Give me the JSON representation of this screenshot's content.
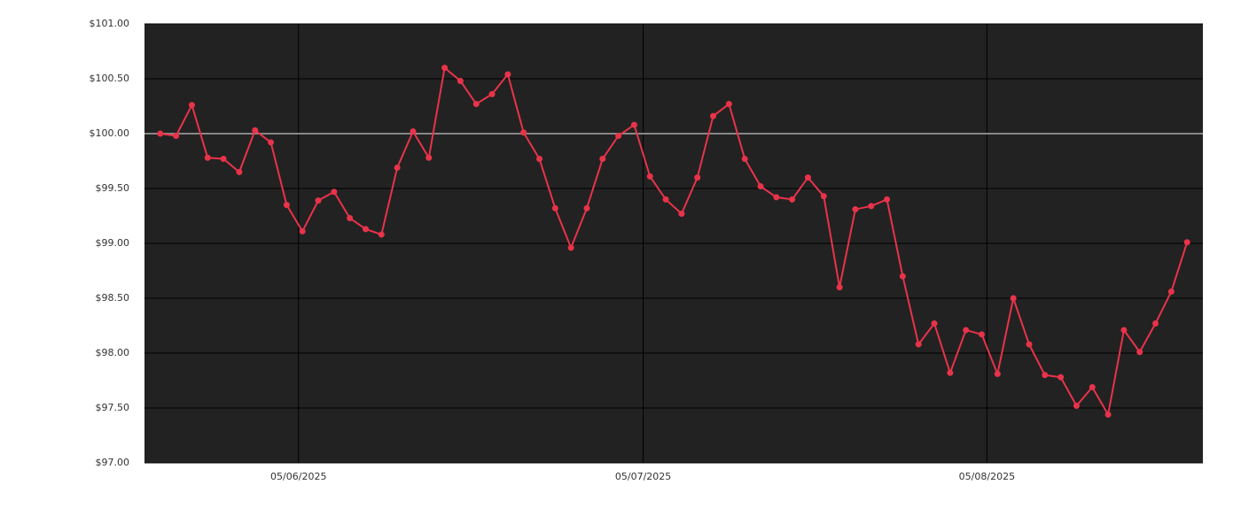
{
  "chart_data": {
    "type": "line",
    "x": [
      0,
      1,
      2,
      3,
      4,
      5,
      6,
      7,
      8,
      9,
      10,
      11,
      12,
      13,
      14,
      15,
      16,
      17,
      18,
      19,
      20,
      21,
      22,
      23,
      24,
      25,
      26,
      27,
      28,
      29,
      30,
      31,
      32,
      33,
      34,
      35,
      36,
      37,
      38,
      39,
      40,
      41,
      42,
      43,
      44,
      45,
      46,
      47,
      48,
      49,
      50,
      51,
      52,
      53,
      54,
      55,
      56,
      57,
      58,
      59,
      60,
      61,
      62,
      63,
      64,
      65
    ],
    "series": [
      {
        "color": "#e8334a",
        "values": [
          100.0,
          99.98,
          100.26,
          99.78,
          99.77,
          99.65,
          100.03,
          99.92,
          99.35,
          99.11,
          99.39,
          99.47,
          99.23,
          99.13,
          99.08,
          99.69,
          100.02,
          99.78,
          100.6,
          100.48,
          100.27,
          100.36,
          100.54,
          100.01,
          99.77,
          99.32,
          98.96,
          99.32,
          99.77,
          99.98,
          100.08,
          99.61,
          99.4,
          99.27,
          99.6,
          100.16,
          100.27,
          99.77,
          99.52,
          99.42,
          99.4,
          99.6,
          99.43,
          98.6,
          99.31,
          99.34,
          99.4,
          98.7,
          98.08,
          98.27,
          97.82,
          98.21,
          98.17,
          97.81,
          98.5,
          98.08,
          97.8,
          97.78,
          97.52,
          97.69,
          97.44,
          98.21,
          98.01,
          98.27,
          98.56,
          99.01
        ]
      }
    ],
    "xlim": [
      -1,
      66
    ],
    "xticks": [
      {
        "value": 8.75,
        "label": "05/06/2025"
      },
      {
        "value": 30.57,
        "label": "05/07/2025"
      },
      {
        "value": 52.33,
        "label": "05/08/2025"
      }
    ],
    "ylim": [
      97,
      101
    ],
    "yticks": [
      {
        "value": 97,
        "label": "$97.00"
      },
      {
        "value": 97.5,
        "label": "$97.50"
      },
      {
        "value": 98,
        "label": "$98.00"
      },
      {
        "value": 98.5,
        "label": "$98.50"
      },
      {
        "value": 99,
        "label": "$99.00"
      },
      {
        "value": 99.5,
        "label": "$99.50"
      },
      {
        "value": 100,
        "label": "$100.00"
      },
      {
        "value": 100.5,
        "label": "$100.50"
      },
      {
        "value": 101,
        "label": "$101.00"
      }
    ],
    "reference_line": 100,
    "grid": true
  }
}
